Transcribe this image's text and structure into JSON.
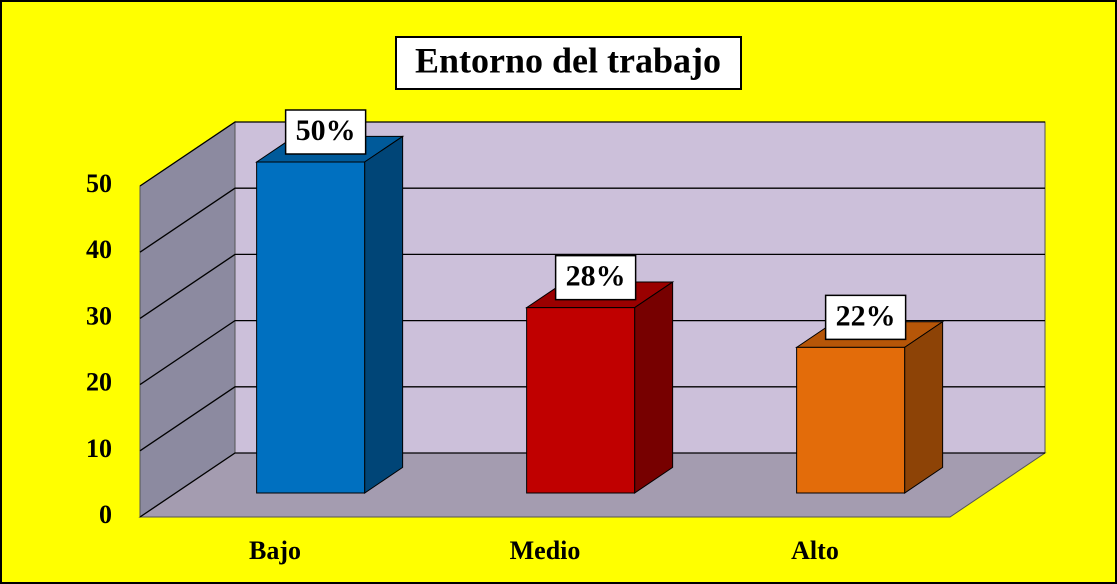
{
  "chart_data": {
    "type": "bar3d",
    "title": "Entorno del trabajo",
    "categories": [
      "Bajo",
      "Medio",
      "Alto"
    ],
    "values": [
      50,
      28,
      22
    ],
    "value_labels": [
      "50%",
      "28%",
      "22%"
    ],
    "colors": [
      "#0070c0",
      "#c00000",
      "#e36c0a"
    ],
    "ylim": [
      0,
      50
    ],
    "yticks": [
      0,
      10,
      20,
      30,
      40,
      50
    ],
    "grid": true
  }
}
